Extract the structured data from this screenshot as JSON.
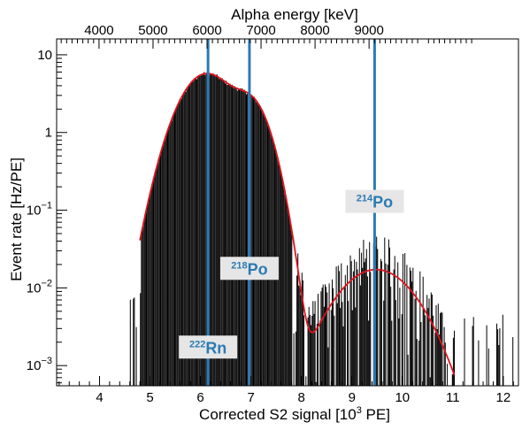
{
  "chart_data": {
    "type": "line",
    "xlabel_main": "Corrected S2 signal [10",
    "xlabel_sup": "3",
    "xlabel_tail": " PE]",
    "ylabel": "Event rate [Hz/PE]",
    "x2label": "Alpha energy [keV]",
    "xlim": [
      3.15,
      12.3
    ],
    "ylim": [
      0.00055,
      16
    ],
    "yscale": "log",
    "x_ticks": [
      "4",
      "5",
      "6",
      "7",
      "8",
      "9",
      "10",
      "11",
      "12"
    ],
    "x_tick_values": [
      4,
      5,
      6,
      7,
      8,
      9,
      10,
      11,
      12
    ],
    "y_ticks": [
      {
        "value": 10,
        "base": "10",
        "exp": ""
      },
      {
        "value": 1,
        "base": "1",
        "exp": ""
      },
      {
        "value": 0.1,
        "base": "10",
        "exp": "−1"
      },
      {
        "value": 0.01,
        "base": "10",
        "exp": "−2"
      },
      {
        "value": 0.001,
        "base": "10",
        "exp": "−3"
      }
    ],
    "x2_ticks": [
      {
        "label": "4000",
        "x": 3.99
      },
      {
        "label": "5000",
        "x": 5.06
      },
      {
        "label": "6000",
        "x": 6.13
      },
      {
        "label": "7000",
        "x": 7.2
      },
      {
        "label": "8000",
        "x": 8.27
      },
      {
        "label": "9000",
        "x": 9.34
      }
    ],
    "peaks": [
      {
        "isotope": "Rn",
        "mass": "222",
        "x": 6.15,
        "label_y": 0.0016
      },
      {
        "isotope": "Po",
        "mass": "218",
        "x": 6.97,
        "label_y": 0.0165
      },
      {
        "isotope": "Po",
        "mass": "214",
        "x": 9.45,
        "label_y": 0.12
      }
    ],
    "colors": {
      "data": "#000000",
      "fit": "#e0141e",
      "peak_line": "#2b7bb3",
      "label_bg": "#e6e6e6"
    }
  }
}
